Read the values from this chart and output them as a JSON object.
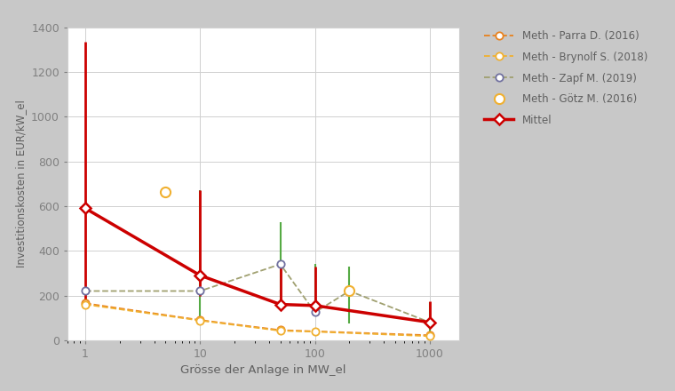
{
  "xlabel": "Grösse der Anlage in MW_el",
  "ylabel": "Investitionskosten in EUR/kW_el",
  "plot_bg_color": "#ffffff",
  "fig_bg_color": "#C8C8C8",
  "xlim_log": [
    0.7,
    1800
  ],
  "ylim": [
    0,
    1400
  ],
  "yticks": [
    0,
    200,
    400,
    600,
    800,
    1000,
    1200,
    1400
  ],
  "xticks": [
    1,
    10,
    100,
    1000
  ],
  "parra": {
    "x": [
      1,
      10,
      50,
      1000
    ],
    "y": [
      165,
      90,
      45,
      22
    ],
    "color": "#E8821E",
    "label": "Meth - Parra D. (2016)"
  },
  "brynolf": {
    "x": [
      1,
      10,
      50,
      100,
      1000
    ],
    "y": [
      160,
      88,
      42,
      38,
      18
    ],
    "color": "#F0B030",
    "label": "Meth - Brynolf S. (2018)"
  },
  "zapf": {
    "x": [
      1,
      10,
      50,
      100,
      200,
      1000
    ],
    "y": [
      220,
      220,
      340,
      125,
      220,
      80
    ],
    "yerr_low": [
      0,
      130,
      210,
      0,
      145,
      55
    ],
    "yerr_high": [
      0,
      450,
      190,
      215,
      110,
      90
    ],
    "line_color": "#A0A070",
    "marker_edge_color": "#7070A0",
    "label": "Meth - Zapf M. (2019)"
  },
  "goetz": {
    "x": [
      5,
      200
    ],
    "y": [
      665,
      220
    ],
    "color": "#F0B030",
    "label": "Meth - Götz M. (2016)"
  },
  "mittel": {
    "x": [
      1,
      10,
      50,
      100,
      1000
    ],
    "y": [
      590,
      290,
      160,
      155,
      80
    ],
    "yerr_low": [
      430,
      90,
      0,
      5,
      15
    ],
    "yerr_high": [
      745,
      380,
      175,
      175,
      95
    ],
    "color": "#CC0000",
    "label": "Mittel"
  },
  "zapf_errbar_color": "#55AA44",
  "mittel_errbar_color": "#CC0000",
  "grid_color": "#D0D0D0",
  "tick_color": "#808080",
  "label_color": "#606060"
}
